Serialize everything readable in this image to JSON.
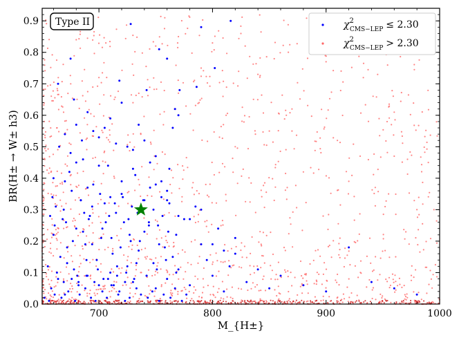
{
  "chart_data": {
    "type": "scatter",
    "xlabel": "M_{H±}",
    "ylabel": "BR(H± → W± h3)",
    "xlim": [
      650,
      1000
    ],
    "ylim": [
      0.0,
      0.94
    ],
    "xticks": [
      700,
      800,
      900,
      1000
    ],
    "yticks": [
      0.0,
      0.1,
      0.2,
      0.3,
      0.4,
      0.5,
      0.6,
      0.7,
      0.8,
      0.9
    ],
    "annotation": "Type II",
    "legend_position": "top-right",
    "series": [
      {
        "name": "χ²_{CMS−LEP} ≤ 2.30",
        "legend_main": "χ",
        "legend_sup": "2",
        "legend_sub": "CMS−LEP",
        "legend_rel": "≤ 2.30",
        "color": "#0000ff",
        "x": [
          652,
          655,
          658,
          660,
          662,
          664,
          666,
          668,
          670,
          672,
          674,
          676,
          678,
          680,
          682,
          684,
          686,
          688,
          690,
          692,
          695,
          698,
          700,
          702,
          705,
          708,
          710,
          712,
          715,
          718,
          720,
          722,
          725,
          728,
          730,
          732,
          735,
          738,
          740,
          742,
          745,
          748,
          750,
          752,
          755,
          758,
          760,
          762,
          765,
          768,
          770,
          775,
          780,
          785,
          790,
          795,
          800,
          805,
          810,
          815,
          820,
          830,
          840,
          850,
          860,
          880,
          900,
          920,
          940,
          960,
          980,
          665,
          670,
          675,
          680,
          685,
          690,
          695,
          700,
          705,
          710,
          715,
          720,
          725,
          730,
          735,
          740,
          745,
          750,
          755,
          760,
          765,
          770,
          660,
          670,
          680,
          690,
          700,
          710,
          720,
          730,
          740,
          750,
          760,
          770,
          780,
          790,
          800,
          810,
          820,
          656,
          661,
          667,
          673,
          679,
          683,
          688,
          693,
          697,
          703,
          707,
          713,
          717,
          723,
          727,
          733,
          737,
          743,
          747,
          753,
          757,
          763,
          767,
          773,
          777,
          663,
          672,
          681,
          689,
          699,
          708,
          716,
          724,
          733,
          742,
          751,
          759,
          768,
          677,
          686,
          694,
          703,
          711,
          719,
          727,
          736,
          744,
          753,
          761,
          728,
          753,
          760,
          767,
          790,
          816,
          802,
          675,
          678,
          664,
          718,
          742,
          771,
          786,
          657,
          659,
          661,
          669,
          671,
          684,
          687,
          691,
          694,
          701,
          706,
          709,
          714,
          721,
          726,
          729,
          734,
          739,
          744,
          748,
          756,
          762,
          669,
          676,
          682,
          689,
          696,
          704,
          711,
          716,
          723,
          731
        ],
        "y": [
          0.02,
          0.12,
          0.05,
          0.22,
          0.31,
          0.08,
          0.15,
          0.27,
          0.03,
          0.18,
          0.42,
          0.36,
          0.11,
          0.24,
          0.07,
          0.33,
          0.46,
          0.19,
          0.09,
          0.28,
          0.38,
          0.14,
          0.06,
          0.21,
          0.32,
          0.44,
          0.1,
          0.16,
          0.29,
          0.04,
          0.35,
          0.26,
          0.12,
          0.2,
          0.07,
          0.41,
          0.17,
          0.3,
          0.23,
          0.09,
          0.37,
          0.13,
          0.05,
          0.25,
          0.34,
          0.18,
          0.08,
          0.43,
          0.15,
          0.22,
          0.11,
          0.27,
          0.06,
          0.31,
          0.19,
          0.14,
          0.09,
          0.24,
          0.04,
          0.12,
          0.16,
          0.07,
          0.11,
          0.05,
          0.09,
          0.06,
          0.04,
          0.18,
          0.07,
          0.05,
          0.03,
          0.5,
          0.54,
          0.48,
          0.57,
          0.52,
          0.61,
          0.55,
          0.53,
          0.56,
          0.59,
          0.51,
          0.64,
          0.5,
          0.49,
          0.57,
          0.52,
          0.45,
          0.47,
          0.39,
          0.33,
          0.56,
          0.6,
          0.4,
          0.39,
          0.45,
          0.37,
          0.44,
          0.34,
          0.39,
          0.43,
          0.33,
          0.38,
          0.36,
          0.28,
          0.27,
          0.3,
          0.19,
          0.17,
          0.21,
          0.01,
          0.03,
          0.02,
          0.04,
          0.01,
          0.03,
          0.05,
          0.02,
          0.01,
          0.04,
          0.02,
          0.06,
          0.03,
          0.01,
          0.02,
          0.05,
          0.03,
          0.02,
          0.04,
          0.01,
          0.03,
          0.02,
          0.05,
          0.01,
          0.03,
          0.1,
          0.13,
          0.09,
          0.14,
          0.11,
          0.08,
          0.12,
          0.1,
          0.13,
          0.09,
          0.11,
          0.14,
          0.1,
          0.2,
          0.23,
          0.19,
          0.24,
          0.21,
          0.18,
          0.22,
          0.2,
          0.25,
          0.19,
          0.23,
          0.89,
          0.81,
          0.78,
          0.62,
          0.88,
          0.9,
          0.75,
          0.78,
          0.65,
          0.7,
          0.71,
          0.68,
          0.68,
          0.69,
          0.28,
          0.34,
          0.25,
          0.3,
          0.26,
          0.33,
          0.29,
          0.27,
          0.31,
          0.35,
          0.26,
          0.28,
          0.32,
          0.34,
          0.27,
          0.31,
          0.29,
          0.33,
          0.26,
          0.3,
          0.28,
          0.32,
          0.07,
          0.08,
          0.06,
          0.09,
          0.07,
          0.08,
          0.06,
          0.09,
          0.07,
          0.08
        ]
      },
      {
        "name": "χ²_{CMS−LEP} > 2.30",
        "legend_main": "χ",
        "legend_sup": "2",
        "legend_sub": "CMS−LEP",
        "legend_rel": "> 2.30",
        "color": "#ff6666",
        "random_seed": 12345,
        "count": 1400,
        "x": [
          758,
          770,
          800,
          900,
          990,
          980,
          812,
          840,
          865,
          930,
          955,
          700,
          680,
          760,
          820,
          870,
          910,
          960,
          790,
          770,
          750,
          730,
          880,
          920,
          850,
          870,
          960,
          995
        ],
        "y": [
          0.91,
          0.85,
          0.83,
          0.77,
          0.45,
          0.3,
          0.6,
          0.73,
          0.6,
          0.47,
          0.35,
          0.72,
          0.84,
          0.78,
          0.5,
          0.55,
          0.52,
          0.47,
          0.75,
          0.67,
          0.82,
          0.64,
          0.42,
          0.39,
          0.55,
          0.62,
          0.61,
          0.3
        ]
      }
    ],
    "highlight": {
      "name": "benchmark-star",
      "x": 737,
      "y": 0.3,
      "color": "#008000"
    }
  }
}
